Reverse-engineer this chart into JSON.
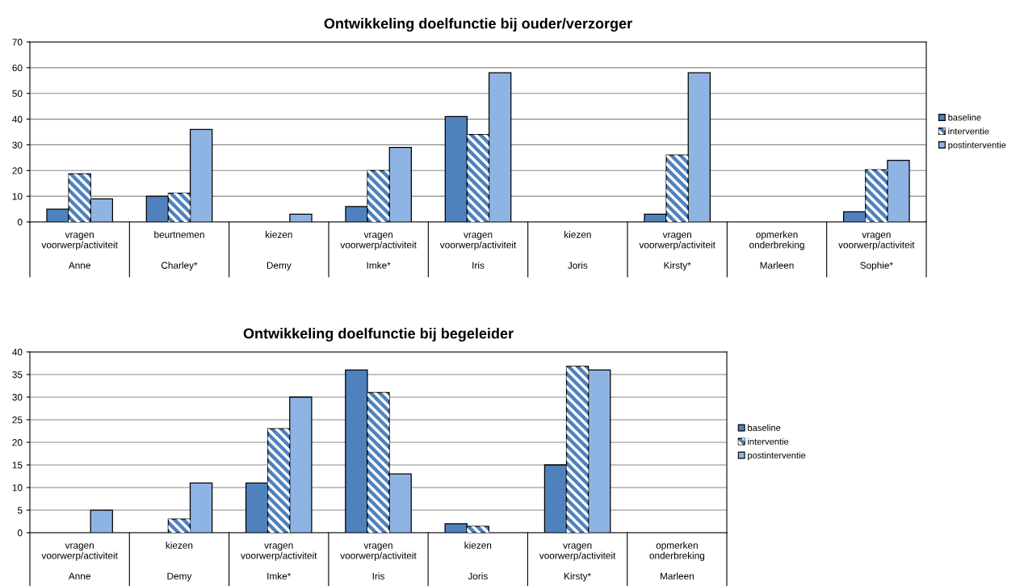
{
  "chart_data": [
    {
      "type": "bar",
      "title": "Ontwikkeling doelfunctie bij ouder/verzorger",
      "categories": [
        "vragen\nvoorwerp/activiteit\n\nAnne",
        "beurtnemen\n\n\nCharley*",
        "kiezen\n\n\nDemy",
        "vragen\nvoorwerp/activiteit\n\nImke*",
        "vragen\nvoorwerp/activiteit\n\nIris",
        "kiezen\n\n\nJoris",
        "vragen\nvoorwerp/activiteit\n\nKirsty*",
        "opmerken\nonderbreking\n\nMarleen",
        "vragen\nvoorwerp/activiteit\n\nSophie*"
      ],
      "series": [
        {
          "name": "baseline",
          "color": "#4f81bd",
          "values": [
            5,
            10,
            0,
            6,
            41,
            0,
            3,
            0,
            4
          ]
        },
        {
          "name": "interventie",
          "color": "#4f81bd",
          "values": [
            18.7,
            11.2,
            0,
            20,
            34,
            0,
            26,
            0,
            20.3
          ]
        },
        {
          "name": "postinterventie",
          "color": "#8eb4e3",
          "values": [
            9,
            36,
            3,
            29,
            58,
            0,
            58,
            0,
            24
          ]
        }
      ],
      "ylim": [
        0,
        70
      ],
      "yticks": [
        0,
        10,
        20,
        30,
        40,
        50,
        60,
        70
      ],
      "grid": "y",
      "legend": "right"
    },
    {
      "type": "bar",
      "title": "Ontwikkeling doelfunctie bij begeleider",
      "categories": [
        "vragen\nvoorwerp/activiteit\n\nAnne",
        "kiezen\n\n\nDemy",
        "vragen\nvoorwerp/activiteit\n\nImke*",
        "vragen\nvoorwerp/activiteit\n\nIris",
        "kiezen\n\n\nJoris",
        "vragen\nvoorwerp/activiteit\n\nKirsty*",
        "opmerken\nonderbreking\n\nMarleen"
      ],
      "series": [
        {
          "name": "baseline",
          "color": "#4f81bd",
          "values": [
            0,
            0,
            11,
            36,
            2,
            15,
            0
          ]
        },
        {
          "name": "interventie",
          "color": "#4f81bd",
          "values": [
            0,
            3,
            23,
            31,
            1.4,
            36.8,
            0
          ]
        },
        {
          "name": "postinterventie",
          "color": "#8eb4e3",
          "values": [
            5,
            11,
            30,
            13,
            0,
            36,
            0
          ]
        }
      ],
      "ylim": [
        0,
        40
      ],
      "yticks": [
        0,
        5,
        10,
        15,
        20,
        25,
        30,
        35,
        40
      ],
      "grid": "y",
      "legend": "right"
    }
  ]
}
